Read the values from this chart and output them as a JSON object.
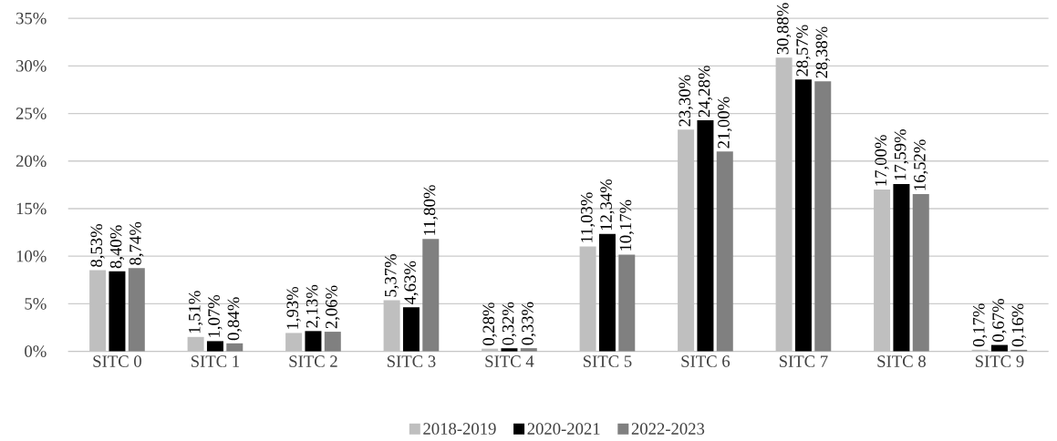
{
  "chart_data": {
    "type": "bar",
    "categories": [
      "SITC 0",
      "SITC 1",
      "SITC 2",
      "SITC 3",
      "SITC 4",
      "SITC 5",
      "SITC 6",
      "SITC 7",
      "SITC 8",
      "SITC 9"
    ],
    "series": [
      {
        "name": "2018-2019",
        "color": "#bfbfbf",
        "values": [
          8.53,
          1.51,
          1.93,
          5.37,
          0.28,
          11.03,
          23.3,
          30.88,
          17.0,
          0.17
        ],
        "value_labels": [
          "8,53%",
          "1,51%",
          "1,93%",
          "5,37%",
          "0,28%",
          "11,03%",
          "23,30%",
          "30,88%",
          "17,00%",
          "0,17%"
        ]
      },
      {
        "name": "2020-2021",
        "color": "#000000",
        "values": [
          8.4,
          1.07,
          2.13,
          4.63,
          0.32,
          12.34,
          24.28,
          28.57,
          17.59,
          0.67
        ],
        "value_labels": [
          "8,40%",
          "1,07%",
          "2,13%",
          "4,63%",
          "0,32%",
          "12,34%",
          "24,28%",
          "28,57%",
          "17,59%",
          "0,67%"
        ]
      },
      {
        "name": "2022-2023",
        "color": "#808080",
        "values": [
          8.74,
          0.84,
          2.06,
          11.8,
          0.33,
          10.17,
          21.0,
          28.38,
          16.52,
          0.16
        ],
        "value_labels": [
          "8,74%",
          "0,84%",
          "2,06%",
          "11,80%",
          "0,33%",
          "10,17%",
          "21,00%",
          "28,38%",
          "16,52%",
          "0,16%"
        ]
      }
    ],
    "ylim": [
      0,
      35
    ],
    "yticks": [
      {
        "value": 0,
        "label": "0%"
      },
      {
        "value": 5,
        "label": "5%"
      },
      {
        "value": 10,
        "label": "10%"
      },
      {
        "value": 15,
        "label": "15%"
      },
      {
        "value": 20,
        "label": "20%"
      },
      {
        "value": 25,
        "label": "25%"
      },
      {
        "value": 30,
        "label": "30%"
      },
      {
        "value": 35,
        "label": "35%"
      }
    ],
    "grid": "y",
    "legend": "bottom"
  }
}
